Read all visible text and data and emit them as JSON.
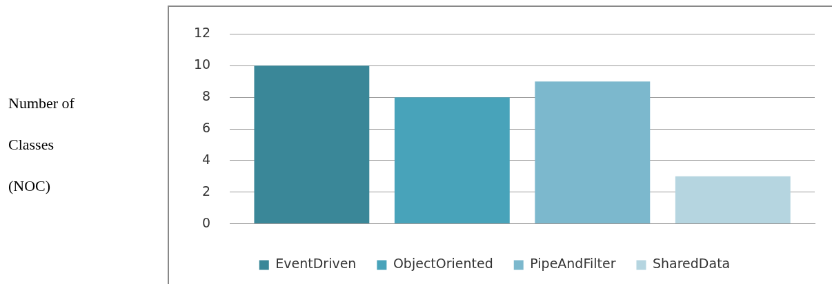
{
  "chart_data": {
    "type": "bar",
    "ylabel": "Number of Classes (NOC)",
    "categories": [
      null
    ],
    "series": [
      {
        "name": "EventDriven",
        "color": "#3a8798",
        "values": [
          10
        ]
      },
      {
        "name": "ObjectOriented",
        "color": "#48a3ba",
        "values": [
          8
        ]
      },
      {
        "name": "PipeAndFilter",
        "color": "#7cb8cd",
        "values": [
          9
        ]
      },
      {
        "name": "SharedData",
        "color": "#b5d5e0",
        "values": [
          3
        ]
      }
    ],
    "ylim": [
      0,
      12
    ],
    "yticks": [
      0,
      2,
      4,
      6,
      8,
      10,
      12
    ],
    "grid": "y",
    "legend": "bottom"
  }
}
